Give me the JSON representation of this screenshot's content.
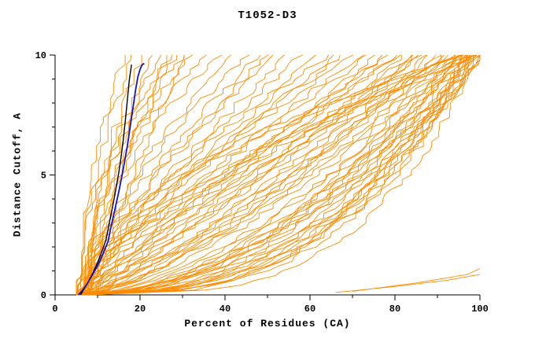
{
  "title": "T1052-D3",
  "chart_data": {
    "type": "line",
    "title": "T1052-D3",
    "xlabel": "Percent of Residues (CA)",
    "ylabel": "Distance Cutoff, A",
    "xlim": [
      0,
      100
    ],
    "ylim": [
      0,
      10
    ],
    "x_major_ticks": [
      0,
      20,
      40,
      60,
      80,
      100
    ],
    "x_minor_step": 10,
    "y_major_ticks": [
      0,
      5,
      10
    ],
    "y_minor_step": 1,
    "grid": false,
    "legend": null,
    "colors": {
      "prediction": "#ff8c00",
      "highlight_blue": "#1414cc",
      "highlight_black": "#000000",
      "axis": "#000000",
      "background": "#ffffff"
    },
    "highlight_series": [
      {
        "name": "highlighted-model-black",
        "color_key": "highlight_black",
        "stroke_width": 1.4,
        "points": [
          [
            6,
            0
          ],
          [
            7,
            0.3
          ],
          [
            8,
            0.6
          ],
          [
            9,
            0.95
          ],
          [
            10,
            1.35
          ],
          [
            11,
            1.8
          ],
          [
            12,
            2.3
          ],
          [
            12.5,
            2.75
          ],
          [
            13,
            3.2
          ],
          [
            13.5,
            3.65
          ],
          [
            14,
            4.1
          ],
          [
            14.5,
            4.6
          ],
          [
            15,
            5.1
          ],
          [
            15.5,
            5.7
          ],
          [
            16,
            6.4
          ],
          [
            16.5,
            7.2
          ],
          [
            17,
            8.1
          ],
          [
            17.5,
            9.0
          ],
          [
            18,
            9.6
          ]
        ]
      },
      {
        "name": "highlighted-model-blue",
        "color_key": "highlight_blue",
        "stroke_width": 1.8,
        "points": [
          [
            5.5,
            0
          ],
          [
            6.5,
            0.2
          ],
          [
            7.5,
            0.45
          ],
          [
            8.5,
            0.75
          ],
          [
            9.5,
            1.05
          ],
          [
            10.5,
            1.4
          ],
          [
            11.5,
            1.8
          ],
          [
            12.5,
            2.25
          ],
          [
            13,
            2.7
          ],
          [
            13.5,
            3.1
          ],
          [
            14,
            3.5
          ],
          [
            14.5,
            3.9
          ],
          [
            15,
            4.3
          ],
          [
            15.5,
            4.75
          ],
          [
            16,
            5.2
          ],
          [
            16.5,
            5.7
          ],
          [
            17,
            6.2
          ],
          [
            17.5,
            6.8
          ],
          [
            18,
            7.4
          ],
          [
            18.5,
            8.0
          ],
          [
            19,
            8.6
          ],
          [
            19.5,
            9.1
          ],
          [
            20,
            9.4
          ],
          [
            20.5,
            9.6
          ],
          [
            21,
            9.65
          ]
        ]
      }
    ],
    "prediction_curves": {
      "encoding": "[start_percent_at_cutoff0, end_percent_at_cutoff10, shape_exponent, seed]; percent(d)=start+(end-start)*(d/10)^shape with jagged jitter, monotonic",
      "jitter": 2.6,
      "sample_step": 0.2,
      "curves": [
        [
          6,
          97,
          0.35,
          1
        ],
        [
          7,
          99,
          0.4,
          2
        ],
        [
          5,
          95,
          0.5,
          3
        ],
        [
          8,
          100,
          0.3,
          4
        ],
        [
          6,
          98,
          0.45,
          5
        ],
        [
          7,
          96,
          0.55,
          6
        ],
        [
          5,
          100,
          0.38,
          7
        ],
        [
          8,
          94,
          0.6,
          8
        ],
        [
          6,
          99,
          0.33,
          9
        ],
        [
          7,
          97,
          0.5,
          10
        ],
        [
          5,
          98,
          0.42,
          11
        ],
        [
          8,
          96,
          0.58,
          12
        ],
        [
          6,
          100,
          0.36,
          13
        ],
        [
          7,
          95,
          0.62,
          14
        ],
        [
          5,
          97,
          0.47,
          15
        ],
        [
          6,
          99,
          0.52,
          16
        ],
        [
          8,
          98,
          0.4,
          17
        ],
        [
          7,
          100,
          0.44,
          18
        ],
        [
          5,
          94,
          0.65,
          19
        ],
        [
          6,
          96,
          0.5,
          20
        ],
        [
          9,
          99,
          0.37,
          21
        ],
        [
          6,
          93,
          0.7,
          22
        ],
        [
          7,
          98,
          0.48,
          23
        ],
        [
          5,
          99,
          0.41,
          24
        ],
        [
          8,
          97,
          0.56,
          25
        ],
        [
          6,
          88,
          0.8,
          26
        ],
        [
          7,
          85,
          0.9,
          27
        ],
        [
          5,
          90,
          0.75,
          28
        ],
        [
          8,
          80,
          1.0,
          29
        ],
        [
          6,
          92,
          0.7,
          30
        ],
        [
          7,
          78,
          1.1,
          31
        ],
        [
          5,
          86,
          0.85,
          32
        ],
        [
          8,
          74,
          1.2,
          33
        ],
        [
          6,
          90,
          0.78,
          34
        ],
        [
          7,
          70,
          1.3,
          35
        ],
        [
          5,
          84,
          0.95,
          36
        ],
        [
          8,
          76,
          1.05,
          37
        ],
        [
          6,
          82,
          0.9,
          38
        ],
        [
          7,
          88,
          0.72,
          39
        ],
        [
          5,
          68,
          1.25,
          40
        ],
        [
          6,
          72,
          1.15,
          41
        ],
        [
          8,
          86,
          0.82,
          42
        ],
        [
          7,
          64,
          1.3,
          43
        ],
        [
          5,
          80,
          1.0,
          44
        ],
        [
          6,
          66,
          1.2,
          45
        ],
        [
          9,
          91,
          0.76,
          46
        ],
        [
          6,
          62,
          1.35,
          47
        ],
        [
          7,
          84,
          0.88,
          48
        ],
        [
          5,
          78,
          1.08,
          49
        ],
        [
          6,
          45,
          1.5,
          50
        ],
        [
          7,
          38,
          1.8,
          51
        ],
        [
          5,
          52,
          1.3,
          52
        ],
        [
          8,
          32,
          2.0,
          53
        ],
        [
          6,
          48,
          1.4,
          54
        ],
        [
          7,
          30,
          2.2,
          55
        ],
        [
          5,
          55,
          1.2,
          56
        ],
        [
          8,
          42,
          1.6,
          57
        ],
        [
          6,
          35,
          1.9,
          58
        ],
        [
          7,
          50,
          1.35,
          59
        ],
        [
          5,
          28,
          2.1,
          60
        ],
        [
          6,
          58,
          1.25,
          61
        ],
        [
          6,
          22,
          1.4,
          62
        ],
        [
          7,
          26,
          1.2,
          63
        ],
        [
          5,
          18,
          1.6,
          64
        ],
        [
          8,
          30,
          1.1,
          65
        ],
        [
          6,
          24,
          1.5,
          66
        ],
        [
          7,
          20,
          1.7,
          67
        ],
        [
          6,
          28,
          1.3,
          68
        ],
        [
          5,
          16,
          1.8,
          69
        ],
        [
          6,
          98,
          1.4,
          70
        ],
        [
          7,
          100,
          1.6,
          71
        ],
        [
          5,
          96,
          1.8,
          72
        ],
        [
          8,
          99,
          1.3,
          73
        ],
        [
          6,
          97,
          2.0,
          74
        ],
        [
          7,
          95,
          1.5,
          75
        ]
      ]
    },
    "extra_curves": [
      {
        "points": [
          [
            66,
            0.1
          ],
          [
            80,
            0.35
          ],
          [
            92,
            0.6
          ],
          [
            100,
            0.85
          ]
        ]
      },
      {
        "points": [
          [
            70,
            0.15
          ],
          [
            85,
            0.5
          ],
          [
            97,
            0.85
          ],
          [
            100,
            1.1
          ]
        ]
      }
    ]
  }
}
